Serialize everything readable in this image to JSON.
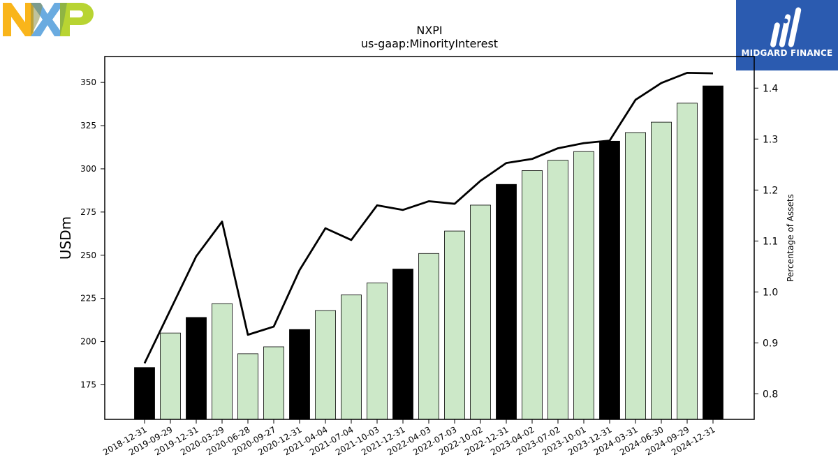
{
  "chart_data": {
    "type": "bar+line",
    "title": "NXPI",
    "subtitle": "us-gaap:MinorityInterest",
    "ylabel": "USDm",
    "ylabel_right": "Percentage of Assets",
    "categories": [
      "2018-12-31",
      "2019-09-29",
      "2019-12-31",
      "2020-03-29",
      "2020-06-28",
      "2020-09-27",
      "2020-12-31",
      "2021-04-04",
      "2021-07-04",
      "2021-10-03",
      "2021-12-31",
      "2022-04-03",
      "2022-07-03",
      "2022-10-02",
      "2022-12-31",
      "2023-04-02",
      "2023-07-02",
      "2023-10-01",
      "2023-12-31",
      "2024-03-31",
      "2024-06-30",
      "2024-09-29",
      "2024-12-31"
    ],
    "values": [
      185,
      205,
      214,
      222,
      193,
      197,
      207,
      218,
      227,
      234,
      242,
      251,
      264,
      279,
      291,
      299,
      305,
      310,
      316,
      321,
      327,
      338,
      348
    ],
    "annual": [
      true,
      false,
      true,
      false,
      false,
      false,
      true,
      false,
      false,
      false,
      true,
      false,
      false,
      false,
      true,
      false,
      false,
      false,
      true,
      false,
      false,
      false,
      true
    ],
    "line_values": [
      0.86,
      0.965,
      1.07,
      1.138,
      0.916,
      0.932,
      1.043,
      1.125,
      1.102,
      1.17,
      1.161,
      1.178,
      1.173,
      1.218,
      1.253,
      1.261,
      1.282,
      1.292,
      1.297,
      1.377,
      1.41,
      1.43,
      1.429
    ],
    "ylim": [
      155,
      365
    ],
    "ylim_right": [
      0.75,
      1.462
    ],
    "yticks": [
      175,
      200,
      225,
      250,
      275,
      300,
      325,
      350
    ],
    "yticks_right": [
      0.8,
      0.9,
      1.0,
      1.1,
      1.2,
      1.3,
      1.4
    ],
    "colors": {
      "annual_bar": "#000000",
      "quarter_bar": "#cce8c8",
      "line": "#000000"
    },
    "grid": false
  },
  "logos": {
    "nxp": {
      "colors": [
        "#f9b51b",
        "#6aabe0",
        "#b8d432"
      ]
    },
    "midgard": {
      "text": "MIDGARD FINANCE",
      "color": "#2b5bb0"
    }
  }
}
